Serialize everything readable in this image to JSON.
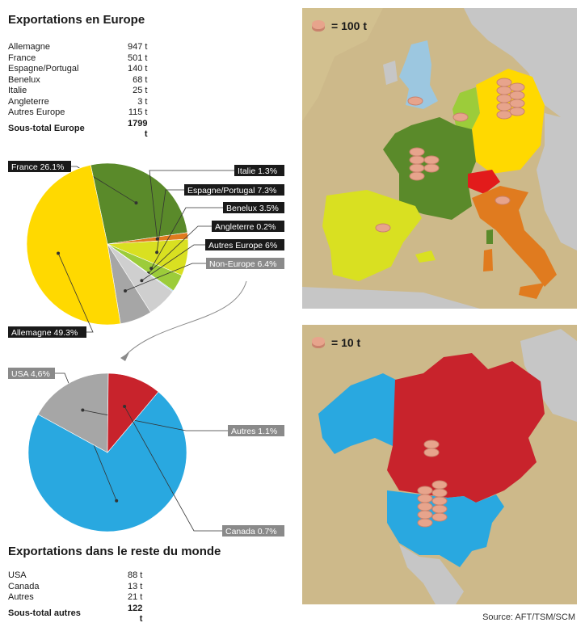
{
  "europe": {
    "title": "Exportations en Europe",
    "rows": [
      {
        "name": "Allemagne",
        "value": "947 t"
      },
      {
        "name": "France",
        "value": "501 t"
      },
      {
        "name": "Espagne/Portugal",
        "value": "140 t"
      },
      {
        "name": "Benelux",
        "value": "68 t"
      },
      {
        "name": "Italie",
        "value": "25 t"
      },
      {
        "name": "Angleterre",
        "value": "3 t"
      },
      {
        "name": "Autres Europe",
        "value": "115 t"
      }
    ],
    "total": {
      "name": "Sous-total Europe",
      "value": "1799 t"
    }
  },
  "world": {
    "title": "Exportations dans le reste du monde",
    "rows": [
      {
        "name": "USA",
        "value": "88 t"
      },
      {
        "name": "Canada",
        "value": "13 t"
      },
      {
        "name": "Autres",
        "value": "21 t"
      }
    ],
    "total": {
      "name": "Sous-total autres",
      "value": "122 t"
    }
  },
  "chart_data": [
    {
      "type": "pie",
      "slices": [
        {
          "label": "France 26.1%",
          "value": 26.1,
          "color": "#5a8a2a"
        },
        {
          "label": "Italie 1.3%",
          "value": 1.3,
          "color": "#e07b1f"
        },
        {
          "label": "Espagne/Portugal 7.3%",
          "value": 7.3,
          "color": "#d9e021"
        },
        {
          "label": "Benelux 3.5%",
          "value": 3.5,
          "color": "#9ccc3a"
        },
        {
          "label": "Angleterre 0.2%",
          "value": 0.2,
          "color": "#7ab8dc"
        },
        {
          "label": "Autres Europe 6%",
          "value": 6.0,
          "color": "#cfcfcf"
        },
        {
          "label": "Non-Europe 6.4%",
          "value": 6.4,
          "color": "#a6a6a6"
        },
        {
          "label": "Allemagne 49.3%",
          "value": 49.3,
          "color": "#ffd900"
        }
      ]
    },
    {
      "type": "pie",
      "slices": [
        {
          "label": "USA 4,6%",
          "value": 4.6,
          "color": "#29a8e0"
        },
        {
          "label": "Autres 1.1%",
          "value": 1.1,
          "color": "#a6a6a6"
        },
        {
          "label": "Canada 0.7%",
          "value": 0.7,
          "color": "#c8232c"
        }
      ]
    }
  ],
  "maps": {
    "europe_legend": "= 100 t",
    "america_legend": "= 10 t"
  },
  "source": "Source: AFT/TSM/SCM"
}
